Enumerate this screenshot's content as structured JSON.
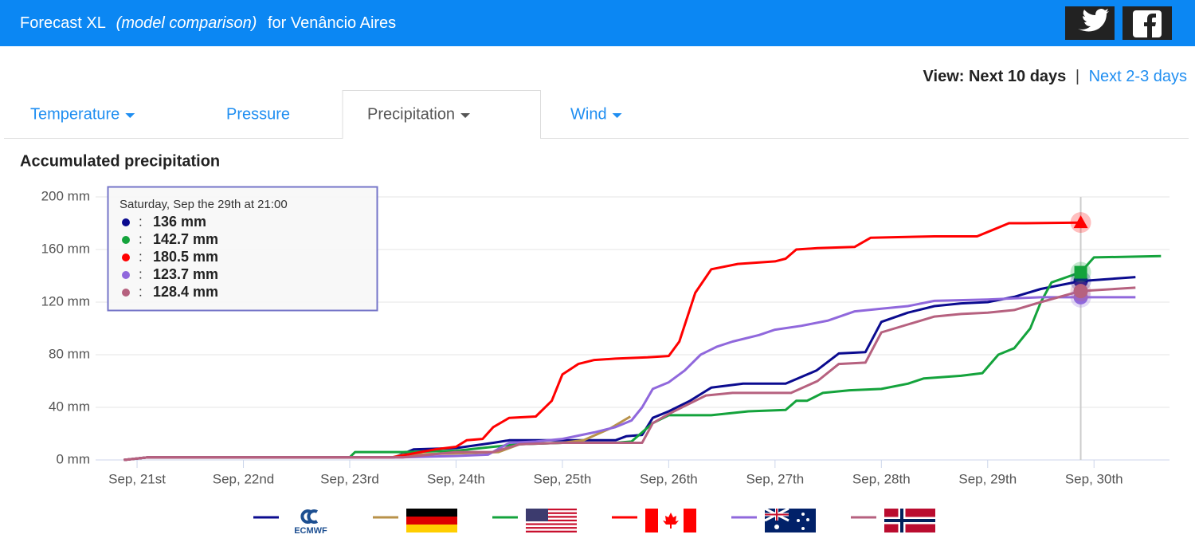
{
  "header": {
    "title": "Forecast XL",
    "subtitle": "(model comparison)",
    "location": "for Venâncio Aires"
  },
  "view": {
    "label": "View: Next 10 days",
    "separator": "|",
    "link": "Next 2-3 days"
  },
  "tabs": [
    {
      "label": "Temperature",
      "dropdown": true,
      "active": false
    },
    {
      "label": "Pressure",
      "dropdown": false,
      "active": false
    },
    {
      "label": "Precipitation",
      "dropdown": true,
      "active": true
    },
    {
      "label": "Wind",
      "dropdown": true,
      "active": false
    }
  ],
  "chart_data": {
    "type": "line",
    "title": "Accumulated precipitation",
    "xlim": [
      20.61,
      30.71
    ],
    "ylim": [
      0,
      200
    ],
    "grid": true,
    "xticks": [
      {
        "value": 21,
        "label": "Sep, 21st"
      },
      {
        "value": 22,
        "label": "Sep, 22nd"
      },
      {
        "value": 23,
        "label": "Sep, 23rd"
      },
      {
        "value": 24,
        "label": "Sep, 24th"
      },
      {
        "value": 25,
        "label": "Sep, 25th"
      },
      {
        "value": 26,
        "label": "Sep, 26th"
      },
      {
        "value": 27,
        "label": "Sep, 27th"
      },
      {
        "value": 28,
        "label": "Sep, 28th"
      },
      {
        "value": 29,
        "label": "Sep, 29th"
      },
      {
        "value": 30,
        "label": "Sep, 30th"
      }
    ],
    "yticks": [
      {
        "value": 0,
        "label": "0 mm"
      },
      {
        "value": 40,
        "label": "40 mm"
      },
      {
        "value": 80,
        "label": "80 mm"
      },
      {
        "value": 120,
        "label": "120 mm"
      },
      {
        "value": 160,
        "label": "160 mm"
      },
      {
        "value": 200,
        "label": "200 mm"
      }
    ],
    "series": [
      {
        "name": "ECMWF",
        "color": "#0b0b8f",
        "x": [
          20.875,
          21.1,
          23.42,
          23.6,
          24.0,
          24.35,
          24.5,
          25.0,
          25.5,
          25.6,
          25.75,
          25.85,
          26.0,
          26.2,
          26.4,
          26.7,
          27.1,
          27.39,
          27.6,
          27.85,
          28.0,
          28.25,
          28.5,
          28.75,
          29.0,
          29.25,
          29.5,
          29.875,
          30.39
        ],
        "values": [
          0,
          2,
          2,
          8,
          9,
          13,
          15,
          15,
          15,
          18,
          19,
          32,
          37,
          45,
          55,
          58,
          58,
          68,
          81,
          82,
          105,
          112,
          117,
          119,
          120,
          124,
          130,
          136,
          139
        ]
      },
      {
        "color": "#b8924a",
        "x": [
          20.875,
          21.1,
          23.4,
          23.5,
          24.0,
          24.4,
          24.6,
          25.0,
          25.2,
          25.45,
          25.64
        ],
        "values": [
          0,
          2,
          2,
          4,
          5,
          6,
          12,
          13,
          15,
          24,
          33
        ]
      },
      {
        "color": "#14a33c",
        "x": [
          20.875,
          21.1,
          23.0,
          23.05,
          23.5,
          24.0,
          24.35,
          24.6,
          25.0,
          25.5,
          25.65,
          25.85,
          26.0,
          26.4,
          26.75,
          27.1,
          27.2,
          27.3,
          27.45,
          27.7,
          28.0,
          28.25,
          28.4,
          28.75,
          28.95,
          29.1,
          29.25,
          29.4,
          29.5,
          29.6,
          29.875,
          30.0,
          30.63
        ],
        "values": [
          0,
          2,
          2,
          6,
          6,
          7,
          10,
          12,
          13,
          13,
          14,
          28,
          34,
          34,
          37,
          38,
          45,
          45,
          51,
          53,
          54,
          58,
          62,
          64,
          66,
          80,
          85,
          100,
          120,
          135,
          142.7,
          154,
          155
        ]
      },
      {
        "color": "#ff0000",
        "x": [
          20.875,
          21.1,
          23.4,
          23.8,
          24.0,
          24.1,
          24.25,
          24.35,
          24.5,
          24.75,
          24.9,
          25.0,
          25.15,
          25.3,
          25.5,
          25.8,
          26.0,
          26.1,
          26.25,
          26.4,
          26.65,
          27.0,
          27.1,
          27.2,
          27.4,
          27.75,
          27.9,
          28.5,
          28.9,
          29.05,
          29.2,
          29.35,
          29.875
        ],
        "values": [
          0,
          2,
          2,
          8,
          10,
          15,
          16,
          25,
          32,
          33,
          45,
          65,
          73,
          76,
          77,
          78,
          79,
          90,
          127,
          145,
          149,
          151,
          153,
          160,
          161,
          162,
          169,
          170,
          170,
          175,
          180,
          180,
          180.5
        ]
      },
      {
        "color": "#9068dc",
        "x": [
          20.875,
          21.1,
          23.5,
          24.0,
          24.3,
          24.5,
          24.75,
          25.0,
          25.3,
          25.5,
          25.65,
          25.75,
          25.85,
          26.0,
          26.15,
          26.3,
          26.45,
          26.6,
          26.85,
          27.0,
          27.25,
          27.5,
          27.75,
          28.0,
          28.25,
          28.5,
          29.0,
          29.5,
          29.875,
          30.39
        ],
        "values": [
          0,
          2,
          2,
          3,
          4,
          13,
          14,
          16,
          21,
          25,
          30,
          40,
          54,
          59,
          68,
          80,
          86,
          90,
          95,
          99,
          102,
          106,
          113,
          115,
          117,
          121,
          122,
          123.7,
          123.7,
          123.7
        ]
      },
      {
        "color": "#b6617f",
        "x": [
          20.875,
          21.1,
          23.5,
          24.0,
          24.35,
          24.6,
          25.0,
          25.75,
          25.85,
          26.0,
          26.35,
          26.6,
          27.15,
          27.4,
          27.6,
          27.85,
          28.0,
          28.25,
          28.5,
          28.75,
          29.0,
          29.25,
          29.5,
          29.875,
          30.39
        ],
        "values": [
          0,
          2,
          2,
          6,
          6,
          12,
          13,
          13,
          28,
          35,
          49,
          51,
          51,
          60,
          73,
          74,
          97,
          103,
          109,
          111,
          112,
          114,
          120,
          128.4,
          131
        ]
      }
    ],
    "tooltip": {
      "title": "Saturday, Sep the 29th at 21:00",
      "x": 29.875,
      "separator": ":",
      "values": [
        136,
        142.7,
        180.5,
        123.7,
        128.4
      ],
      "value_labels": [
        "136 mm",
        "142.7 mm",
        "180.5 mm",
        "123.7 mm",
        "128.4 mm"
      ],
      "colors": [
        "#0b0b8f",
        "#14a33c",
        "#ff0000",
        "#9068dc",
        "#b6617f"
      ],
      "markers": [
        "circle",
        "square",
        "triangle",
        "circle",
        "circle"
      ]
    }
  }
}
